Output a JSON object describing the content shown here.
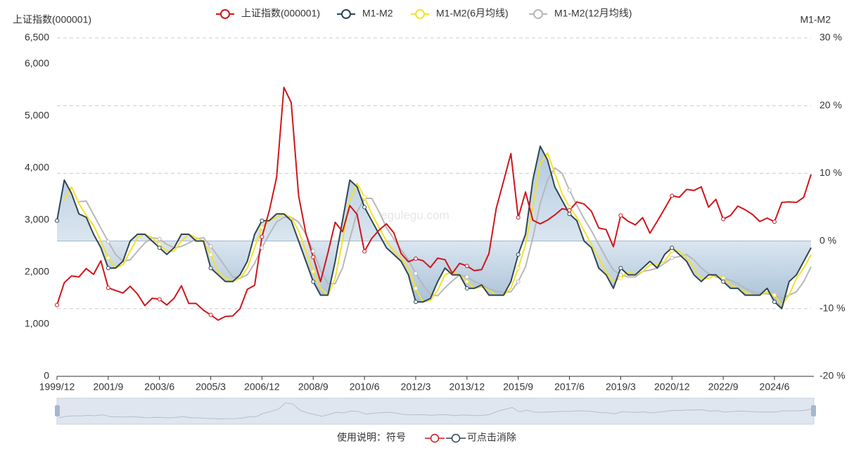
{
  "chart_data": {
    "type": "line",
    "yname": "上证指数(000001)",
    "y2name": "M1-M2",
    "watermark": "egulegu.com",
    "note_prefix": "使用说明：符号",
    "note_suffix": "可点击消除",
    "categories": [
      "1999/12",
      null,
      null,
      null,
      null,
      null,
      null,
      "2001/9",
      null,
      null,
      null,
      null,
      null,
      null,
      "2003/6",
      null,
      null,
      null,
      null,
      null,
      null,
      "2005/3",
      null,
      null,
      null,
      null,
      null,
      null,
      "2006/12",
      null,
      null,
      null,
      null,
      null,
      null,
      "2008/9",
      null,
      null,
      null,
      null,
      null,
      null,
      "2010/6",
      null,
      null,
      null,
      null,
      null,
      null,
      "2012/3",
      null,
      null,
      null,
      null,
      null,
      null,
      "2013/12",
      null,
      null,
      null,
      null,
      null,
      null,
      "2015/9",
      null,
      null,
      null,
      null,
      null,
      null,
      "2017/6",
      null,
      null,
      null,
      null,
      null,
      null,
      "2019/3",
      null,
      null,
      null,
      null,
      null,
      null,
      "2020/12",
      null,
      null,
      null,
      null,
      null,
      null,
      "2022/9",
      null,
      null,
      null,
      null,
      null,
      null,
      "2024/6",
      null,
      null,
      null,
      null,
      null
    ],
    "ylim": [
      0,
      6500
    ],
    "yticks": [
      0,
      {
        "value": 1000,
        "label": "1,000"
      },
      {
        "value": 2000,
        "label": "2,000"
      },
      {
        "value": 3000,
        "label": "3,000"
      },
      {
        "value": 4000,
        "label": "4,000"
      },
      {
        "value": 5000,
        "label": "5,000"
      },
      {
        "value": 6000,
        "label": "6,000"
      },
      {
        "value": 6500,
        "label": "6,500"
      }
    ],
    "y2lim": [
      -20,
      30
    ],
    "y2ticks": [
      {
        "value": -20,
        "label": "-20 %"
      },
      {
        "value": -10,
        "label": "-10 %"
      },
      {
        "value": 0,
        "label": "0 %"
      },
      {
        "value": 10,
        "label": "10 %"
      },
      {
        "value": 20,
        "label": "20 %"
      },
      {
        "value": 30,
        "label": "30 %"
      }
    ],
    "grid": "y2",
    "series": [
      {
        "name": "上证指数(000001)",
        "color": "#d0161b",
        "values": [
          1370,
          1800,
          1930,
          1910,
          2070,
          1960,
          2220,
          1700,
          1650,
          1600,
          1730,
          1580,
          1360,
          1500,
          1480,
          1370,
          1500,
          1740,
          1400,
          1400,
          1270,
          1180,
          1080,
          1150,
          1160,
          1300,
          1670,
          1750,
          2680,
          3180,
          3820,
          5550,
          5260,
          3470,
          2740,
          2290,
          1820,
          2370,
          2960,
          2780,
          3280,
          3110,
          2400,
          2650,
          2810,
          2930,
          2760,
          2360,
          2200,
          2260,
          2220,
          2090,
          2270,
          2240,
          1980,
          2170,
          2120,
          2030,
          2050,
          2360,
          3230,
          3750,
          4280,
          3050,
          3540,
          3000,
          2930,
          3000,
          3100,
          3220,
          3190,
          3350,
          3310,
          3170,
          2850,
          2820,
          2490,
          3090,
          2980,
          2910,
          3050,
          2750,
          2980,
          3220,
          3470,
          3440,
          3590,
          3570,
          3640,
          3250,
          3400,
          3020,
          3090,
          3270,
          3200,
          3110,
          2975,
          3040,
          2970,
          3340,
          3350,
          3340,
          3440,
          3880
        ]
      },
      {
        "name": "M1-M2",
        "color": "#2f4554",
        "axis": "y2",
        "area": true,
        "values": [
          3,
          9,
          7,
          4,
          3.5,
          1,
          -1,
          -4,
          -4,
          -3,
          0,
          1,
          1,
          0,
          -1,
          -2,
          -1,
          1,
          1,
          0,
          0,
          -4,
          -5,
          -6,
          -6,
          -5,
          -3,
          1,
          3,
          3,
          4,
          4,
          3,
          0,
          -3,
          -6,
          -8,
          -8,
          -3,
          3,
          9,
          8,
          5,
          3,
          1,
          -1,
          -2,
          -3,
          -5,
          -9,
          -9,
          -8.5,
          -6,
          -4,
          -5,
          -5,
          -7,
          -7,
          -6.5,
          -8,
          -8,
          -8,
          -6,
          -2,
          1,
          9,
          14,
          12,
          8,
          6,
          4,
          3,
          0,
          -1,
          -4,
          -5,
          -7,
          -4,
          -5,
          -5,
          -4,
          -3,
          -4,
          -2,
          -1,
          -2,
          -3,
          -5,
          -6,
          -5,
          -5,
          -6,
          -7,
          -7,
          -8,
          -8,
          -8,
          -7,
          -9,
          -10,
          -6,
          -5,
          -3,
          -1
        ]
      },
      {
        "name": "M1-M2(6月均线)",
        "color": "#f5e12a",
        "axis": "y2",
        "values": [
          null,
          6,
          8,
          5.5,
          3.8,
          2.3,
          0,
          -2.5,
          -4,
          -3.5,
          -1.5,
          0.5,
          1,
          0.5,
          -0.5,
          -1.5,
          -1.5,
          0,
          1,
          0.5,
          0,
          -2,
          -4.5,
          -5.5,
          -6,
          -5.5,
          -4,
          -1,
          2,
          3,
          3.5,
          4,
          3.5,
          1.5,
          -1.5,
          -4.5,
          -7,
          -8,
          -5.5,
          0,
          6,
          8.5,
          6.5,
          4,
          2,
          0,
          -1.5,
          -2.5,
          -4,
          -7,
          -9,
          -8.8,
          -7.3,
          -5,
          -4.5,
          -5,
          -6,
          -7,
          -6.8,
          -7.3,
          -8,
          -8,
          -7,
          -4,
          -0.5,
          5,
          11.5,
          13,
          10,
          7,
          5,
          3.5,
          1.5,
          -0.5,
          -2.5,
          -4.5,
          -6,
          -5.5,
          -4.5,
          -5,
          -4.5,
          -3.5,
          -3.5,
          -3,
          -1.5,
          -1.5,
          -2.5,
          -4,
          -5.5,
          -5.5,
          -5,
          -5.5,
          -6.5,
          -7,
          -7.5,
          -8,
          -8,
          -7.5,
          -8,
          -9.5,
          -8,
          -5.5,
          -4,
          -2
        ]
      },
      {
        "name": "M1-M2(12月均线)",
        "color": "#b8b8b8",
        "axis": "y2",
        "values": [
          null,
          null,
          null,
          5.8,
          5.9,
          3.9,
          1.9,
          -0.1,
          -2,
          -3,
          -2.8,
          -1.5,
          -0.3,
          0.5,
          0.3,
          -0.5,
          -1,
          -0.8,
          -0.3,
          0.3,
          0.5,
          -0.8,
          -2.3,
          -3.8,
          -5.3,
          -5.5,
          -5,
          -3.3,
          -1,
          1,
          2.8,
          3.5,
          3.5,
          2.8,
          1,
          -1.5,
          -4.3,
          -6.3,
          -6.3,
          -4,
          0.3,
          4.3,
          6.3,
          6.3,
          4.3,
          2,
          0.3,
          -1.3,
          -2.8,
          -4.8,
          -6.5,
          -7.9,
          -8.1,
          -6.9,
          -5.9,
          -5,
          -5.3,
          -6,
          -6.4,
          -7.1,
          -7.4,
          -7.6,
          -7.5,
          -6,
          -3.8,
          0.5,
          5.5,
          9,
          10.8,
          10,
          7.5,
          5.3,
          3.3,
          1.5,
          -0.5,
          -2.5,
          -4.3,
          -5,
          -5.3,
          -5.3,
          -4.5,
          -4.3,
          -4,
          -3.3,
          -2.5,
          -2.3,
          -2,
          -2.8,
          -4,
          -4.8,
          -5.3,
          -5.5,
          -5.8,
          -6.3,
          -7,
          -7.5,
          -7.8,
          -7.8,
          -8,
          -8.5,
          -8,
          -7.5,
          -6,
          -3.8
        ]
      }
    ]
  }
}
